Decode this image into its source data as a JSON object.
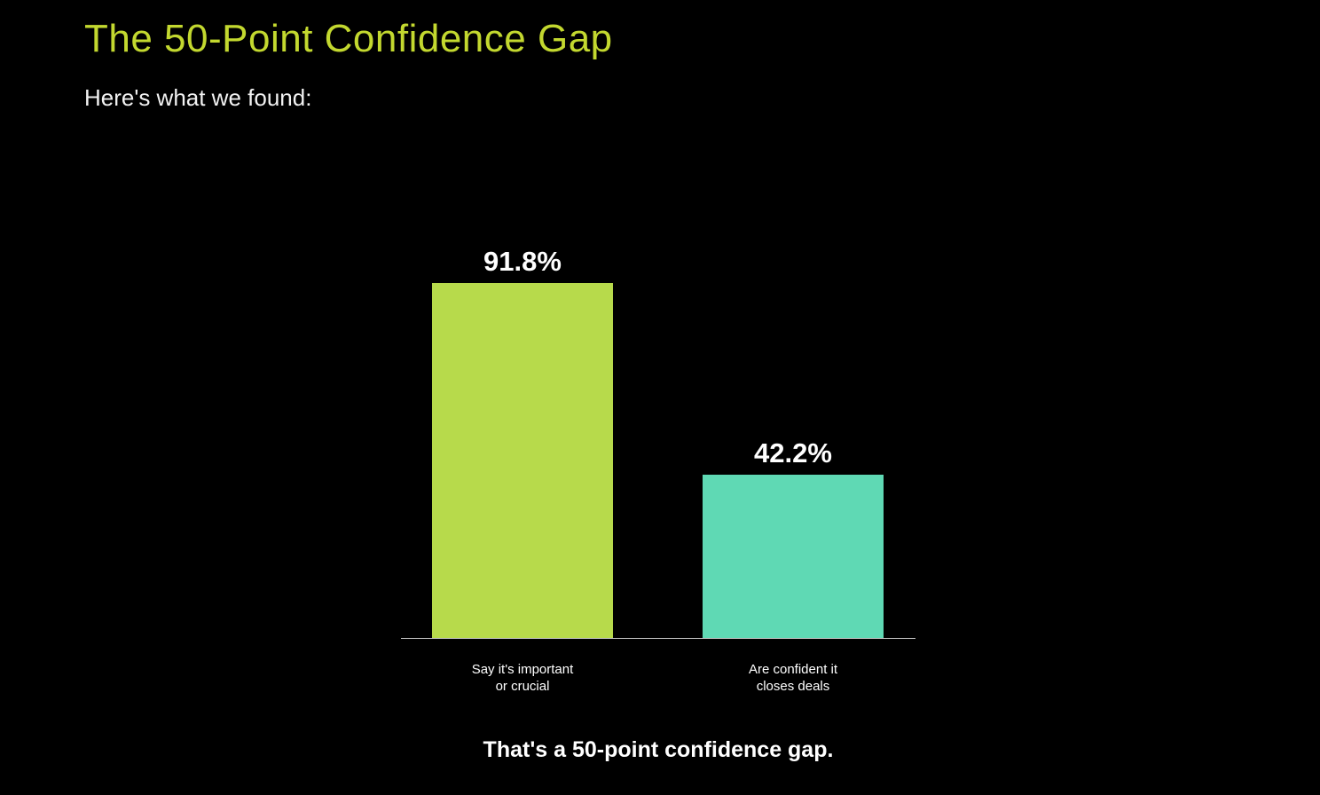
{
  "header": {
    "title": "The 50-Point Confidence Gap",
    "subtitle": "Here's what we found:"
  },
  "chart_data": {
    "type": "bar",
    "categories": [
      "Say it's important\nor crucial",
      "Are confident it\ncloses deals"
    ],
    "values": [
      91.8,
      42.2
    ],
    "value_labels": [
      "91.8%",
      "42.2%"
    ],
    "title": "",
    "xlabel": "",
    "ylabel": "",
    "ylim": [
      0,
      100
    ],
    "bar_colors": [
      "#b7da4b",
      "#5fd9b4"
    ],
    "grid": false,
    "legend": "none",
    "caption": "That's a 50-point confidence gap."
  },
  "colors": {
    "background": "#000000",
    "title_accent": "#c3d82f",
    "text": "#ffffff",
    "axis_line": "#c9c9c9"
  }
}
